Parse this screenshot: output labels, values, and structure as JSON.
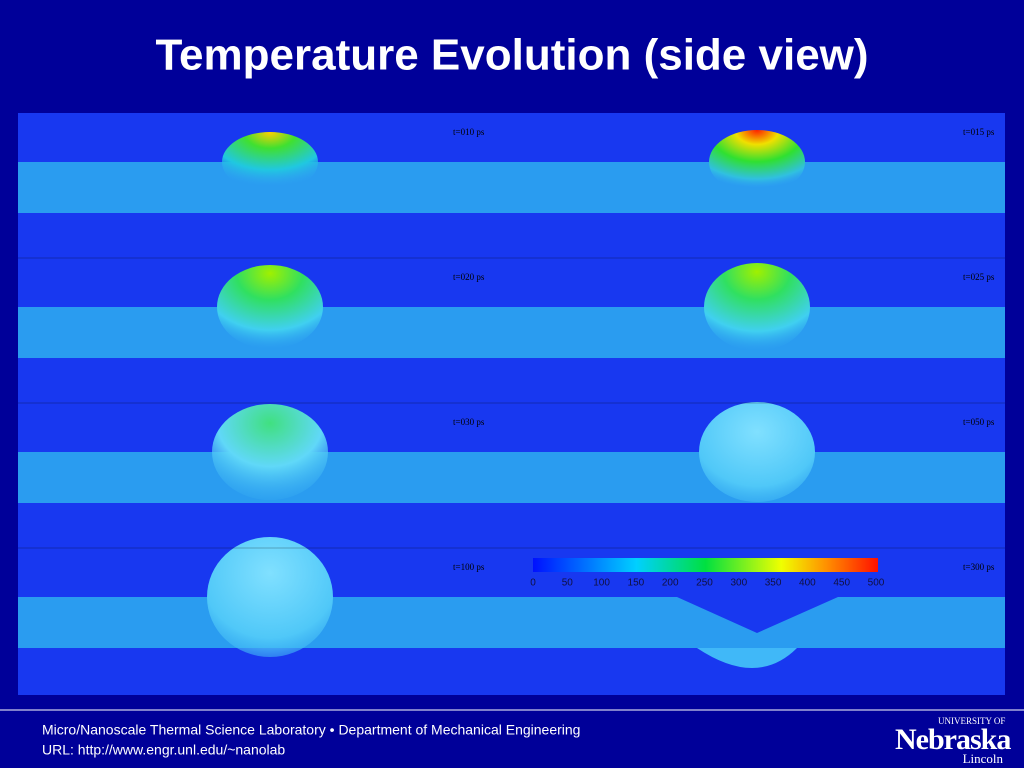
{
  "title": "Temperature Evolution (side view)",
  "panels": [
    {
      "label": "t=010 ps"
    },
    {
      "label": "t=015 ps"
    },
    {
      "label": "t=020 ps"
    },
    {
      "label": "t=025 ps"
    },
    {
      "label": "t=030 ps"
    },
    {
      "label": "t=050 ps"
    },
    {
      "label": "t=100 ps"
    },
    {
      "label": "t=300 ps"
    }
  ],
  "colorbar": {
    "ticks": [
      0,
      50,
      100,
      150,
      200,
      250,
      300,
      350,
      400,
      450,
      500
    ],
    "range": [
      0,
      500
    ]
  },
  "footer": {
    "line1": "Micro/Nanoscale Thermal Science Laboratory • Department of Mechanical Engineering",
    "line2": "URL: http://www.engr.unl.edu/~nanolab"
  },
  "logo": {
    "top": "UNIVERSITY OF",
    "name": "Nebraska",
    "campus": "Lincoln"
  }
}
